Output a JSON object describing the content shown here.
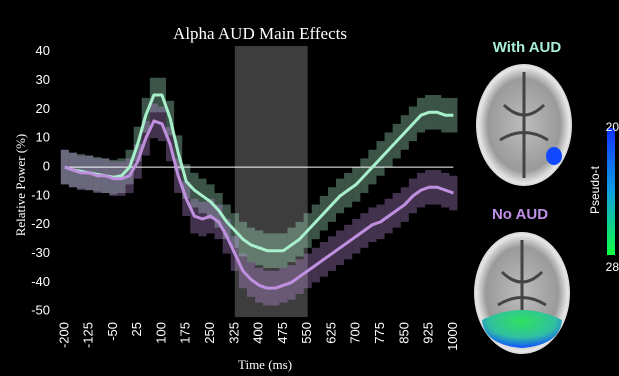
{
  "chart_data": {
    "type": "line",
    "title": "Alpha AUD Main Effects",
    "x_label": "Time (ms)",
    "y_label": "Relative Power (%)",
    "x": [
      -200,
      -175,
      -150,
      -125,
      -100,
      -75,
      -50,
      -25,
      0,
      25,
      50,
      75,
      100,
      125,
      150,
      175,
      200,
      225,
      250,
      275,
      300,
      325,
      350,
      375,
      400,
      425,
      450,
      475,
      500,
      525,
      550,
      575,
      600,
      625,
      650,
      675,
      700,
      725,
      750,
      775,
      800,
      825,
      850,
      875,
      900,
      925,
      950,
      975,
      1000
    ],
    "series": [
      {
        "name": "With AUD",
        "color": "#a8f0cc",
        "error": 6,
        "values": [
          0,
          -1,
          -1.5,
          -2,
          -2.5,
          -3,
          -3.5,
          -3,
          0,
          8,
          18,
          25,
          25,
          17,
          5,
          -5,
          -8,
          -10,
          -12,
          -15,
          -19,
          -22,
          -25,
          -27,
          -28,
          -29,
          -29,
          -29,
          -27,
          -25,
          -22,
          -19,
          -16,
          -13,
          -10,
          -8,
          -6,
          -3,
          0,
          3,
          6,
          9,
          12,
          15,
          18,
          19,
          19,
          18,
          18
        ]
      },
      {
        "name": "No AUD",
        "color": "#c090e0",
        "error": 6,
        "values": [
          0,
          -1,
          -2,
          -2,
          -3,
          -3,
          -4,
          -4,
          -3,
          2,
          10,
          16,
          15,
          8,
          -3,
          -11,
          -17,
          -18,
          -17,
          -19,
          -24,
          -30,
          -36,
          -39,
          -41,
          -42,
          -42,
          -41,
          -40,
          -38,
          -36,
          -34,
          -32,
          -30,
          -28,
          -26,
          -24,
          -22,
          -20,
          -19,
          -17,
          -15,
          -13,
          -10,
          -8,
          -7,
          -7,
          -8,
          -9
        ]
      }
    ],
    "highlight": [
      325,
      550
    ],
    "xlim": [
      -215,
      1005
    ],
    "ylim": [
      -52,
      42
    ],
    "xticks": [
      -200,
      -125,
      -50,
      25,
      100,
      175,
      250,
      325,
      400,
      475,
      550,
      625,
      700,
      775,
      850,
      925,
      1000
    ],
    "yticks": [
      -50,
      -40,
      -30,
      -20,
      -10,
      0,
      10,
      20,
      30,
      40
    ],
    "colorbar": {
      "label": "Pseudo-t",
      "ticks": [
        20,
        28
      ]
    }
  }
}
